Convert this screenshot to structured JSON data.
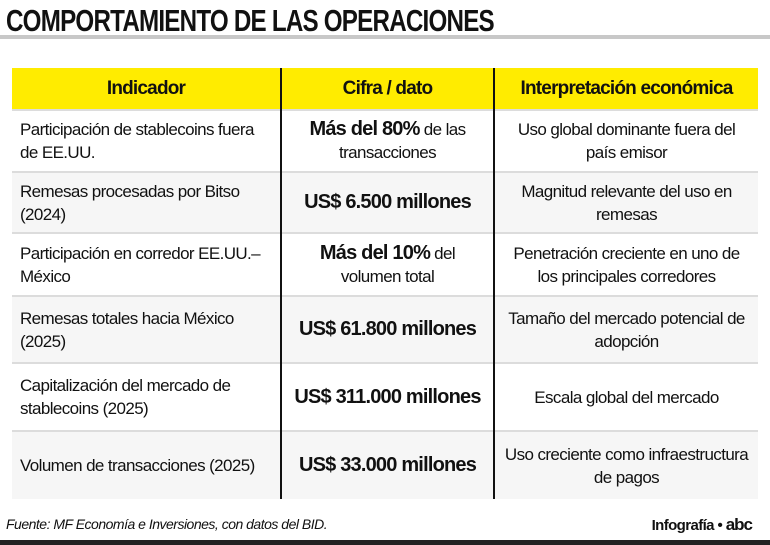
{
  "title": "COMPORTAMIENTO DE LAS OPERACIONES",
  "table": {
    "headers": [
      "Indicador",
      "Cifra / dato",
      "Interpretación económica"
    ],
    "rows": [
      {
        "indicator": "Participación de stablecoins fuera de EE.UU.",
        "figure_bold": "Más del 80%",
        "figure_rest": " de las transacciones",
        "interpretation": "Uso global dominante fuera del país emisor"
      },
      {
        "indicator": "Remesas procesadas por Bitso (2024)",
        "figure_bold": "US$ 6.500 millones",
        "figure_rest": "",
        "interpretation": "Magnitud relevante del uso en remesas"
      },
      {
        "indicator": "Participación en corredor EE.UU.–México",
        "figure_bold": "Más del 10%",
        "figure_rest": " del volumen total",
        "interpretation": "Penetración creciente en uno de los principales corredores"
      },
      {
        "indicator": "Remesas totales hacia México (2025)",
        "figure_bold": "US$ 61.800 millones",
        "figure_rest": "",
        "interpretation": "Tamaño del mercado potencial de adopción"
      },
      {
        "indicator": "Capitalización del mercado de stablecoins (2025)",
        "figure_bold": "US$ 311.000 millones",
        "figure_rest": "",
        "interpretation": "Escala global del mercado"
      },
      {
        "indicator": "Volumen de transacciones (2025)",
        "figure_bold": "US$ 33.000 millones",
        "figure_rest": "",
        "interpretation": "Uso creciente como infraestructura de pagos"
      }
    ]
  },
  "footer": {
    "source": "Fuente: MF Economía e Inversiones, con datos del BID.",
    "credit": "Infografía •",
    "logo": "abc"
  },
  "colors": {
    "header_bg": "#ffec00"
  }
}
